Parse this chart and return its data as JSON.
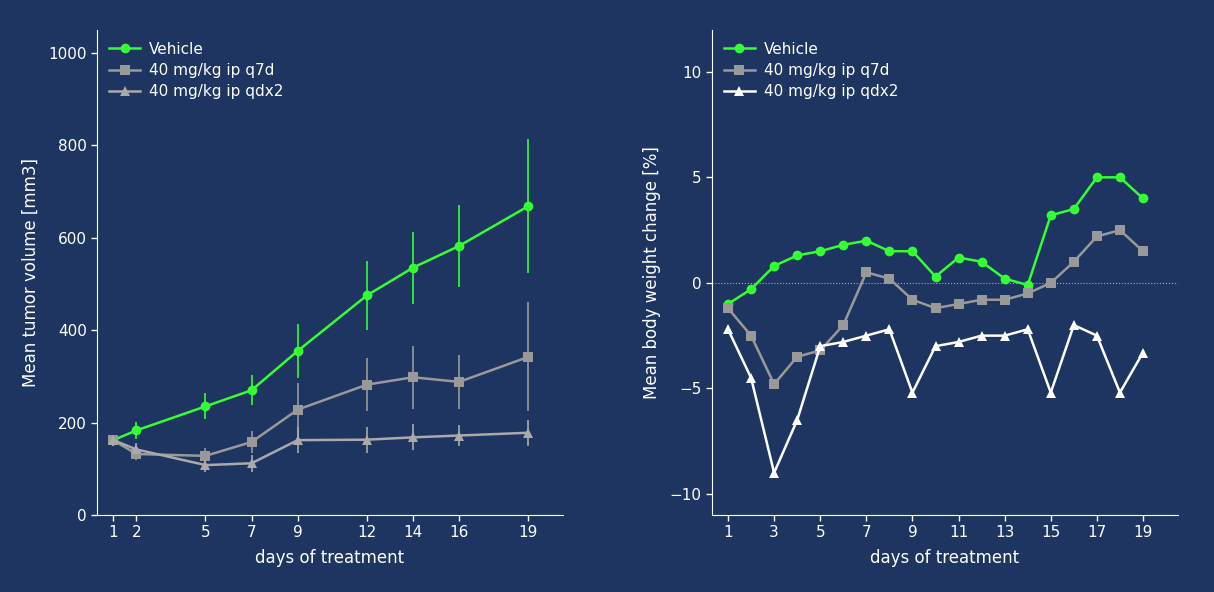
{
  "background_color": "#1e3461",
  "text_color": "#ffffff",
  "left_plot": {
    "xlabel": "days of treatment",
    "ylabel": "Mean tumor volume [mm3]",
    "xticks": [
      1,
      2,
      5,
      7,
      9,
      12,
      14,
      16,
      19
    ],
    "ylim": [
      0,
      1050
    ],
    "yticks": [
      0,
      200,
      400,
      600,
      800,
      1000
    ],
    "vehicle": {
      "x": [
        1,
        2,
        5,
        7,
        9,
        12,
        14,
        16,
        19
      ],
      "y": [
        162,
        183,
        235,
        270,
        355,
        475,
        535,
        582,
        668
      ],
      "yerr": [
        12,
        18,
        28,
        32,
        58,
        75,
        78,
        88,
        145
      ],
      "color": "#33ff33",
      "label": "Vehicle"
    },
    "q7d": {
      "x": [
        1,
        2,
        5,
        7,
        9,
        12,
        14,
        16,
        19
      ],
      "y": [
        162,
        132,
        128,
        158,
        228,
        282,
        298,
        288,
        342
      ],
      "yerr": [
        12,
        14,
        18,
        24,
        58,
        58,
        68,
        58,
        118
      ],
      "color": "#999999",
      "label": "40 mg/kg ip q7d"
    },
    "qdx2": {
      "x": [
        1,
        2,
        5,
        7,
        9,
        12,
        14,
        16,
        19
      ],
      "y": [
        162,
        142,
        108,
        112,
        162,
        163,
        168,
        172,
        178
      ],
      "yerr": [
        12,
        14,
        14,
        18,
        28,
        28,
        28,
        22,
        28
      ],
      "color": "#aaaaaa",
      "label": "40 mg/kg ip qdx2"
    }
  },
  "right_plot": {
    "xlabel": "days of treatment",
    "ylabel": "Mean body weight change [%]",
    "xticks": [
      1,
      3,
      5,
      7,
      9,
      11,
      13,
      15,
      17,
      19
    ],
    "ylim": [
      -11,
      12
    ],
    "yticks": [
      -10,
      -5,
      0,
      5,
      10
    ],
    "vehicle": {
      "x": [
        1,
        2,
        3,
        4,
        5,
        6,
        7,
        8,
        9,
        10,
        11,
        12,
        13,
        14,
        15,
        16,
        17,
        18,
        19
      ],
      "y": [
        -1.0,
        -0.3,
        0.8,
        1.3,
        1.5,
        1.8,
        2.0,
        1.5,
        1.5,
        0.3,
        1.2,
        1.0,
        0.2,
        -0.1,
        3.2,
        3.5,
        5.0,
        5.0,
        4.0
      ],
      "color": "#33ff33",
      "label": "Vehicle"
    },
    "q7d": {
      "x": [
        1,
        2,
        3,
        4,
        5,
        6,
        7,
        8,
        9,
        10,
        11,
        12,
        13,
        14,
        15,
        16,
        17,
        18,
        19
      ],
      "y": [
        -1.2,
        -2.5,
        -4.8,
        -3.5,
        -3.2,
        -2.0,
        0.5,
        0.2,
        -0.8,
        -1.2,
        -1.0,
        -0.8,
        -0.8,
        -0.5,
        0.0,
        1.0,
        2.2,
        2.5,
        1.5
      ],
      "color": "#999999",
      "label": "40 mg/kg ip q7d"
    },
    "qdx2": {
      "x": [
        1,
        2,
        3,
        4,
        5,
        6,
        7,
        8,
        9,
        10,
        11,
        12,
        13,
        14,
        15,
        16,
        17,
        18,
        19
      ],
      "y": [
        -2.2,
        -4.5,
        -9.0,
        -6.5,
        -3.0,
        -2.8,
        -2.5,
        -2.2,
        -5.2,
        -3.0,
        -2.8,
        -2.5,
        -2.5,
        -2.2,
        -5.2,
        -2.0,
        -2.5,
        -5.2,
        -3.3
      ],
      "color": "#ffffff",
      "label": "40 mg/kg ip qdx2"
    }
  }
}
